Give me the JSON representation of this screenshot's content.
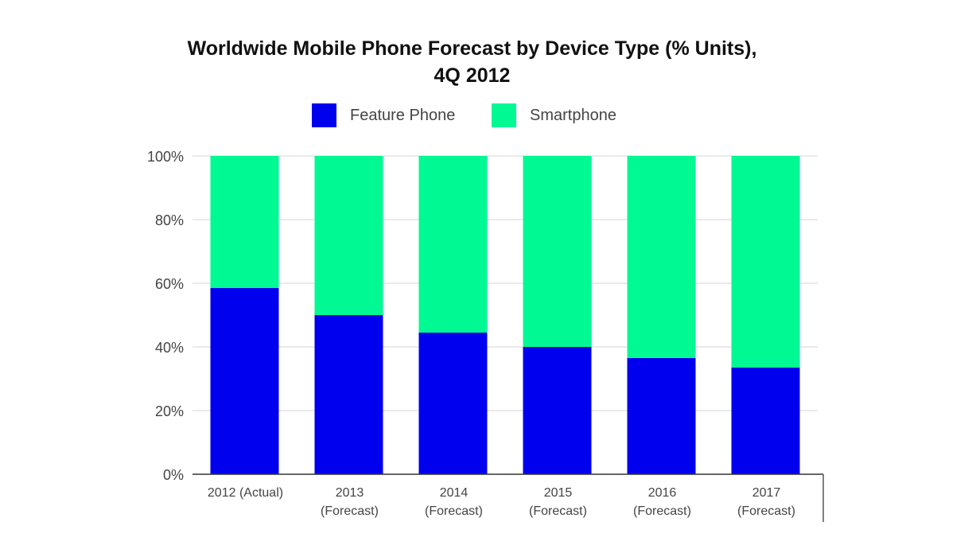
{
  "title": {
    "line1": "Worldwide Mobile Phone Forecast by Device Type (% Units),",
    "line2": "4Q 2012"
  },
  "legend": [
    {
      "name": "Feature Phone",
      "color": "#0000ee"
    },
    {
      "name": "Smartphone",
      "color": "#00f993"
    }
  ],
  "chart_data": {
    "type": "bar",
    "stacked": true,
    "title": "Worldwide Mobile Phone Forecast by Device Type (% Units), 4Q 2012",
    "categories": [
      [
        "2012 (Actual)"
      ],
      [
        "2013",
        "(Forecast)"
      ],
      [
        "2014",
        "(Forecast)"
      ],
      [
        "2015",
        "(Forecast)"
      ],
      [
        "2016",
        "(Forecast)"
      ],
      [
        "2017",
        "(Forecast)"
      ]
    ],
    "series": [
      {
        "name": "Feature Phone",
        "color": "#0000ee",
        "values": [
          58.5,
          50,
          44.5,
          40,
          36.5,
          33.5
        ]
      },
      {
        "name": "Smartphone",
        "color": "#00f993",
        "values": [
          41.5,
          50,
          55.5,
          60,
          63.5,
          66.5
        ]
      }
    ],
    "yticks": [
      "0%",
      "20%",
      "40%",
      "60%",
      "80%",
      "100%"
    ],
    "ylim": [
      0,
      100
    ],
    "grid": true,
    "legend_position": "top"
  }
}
